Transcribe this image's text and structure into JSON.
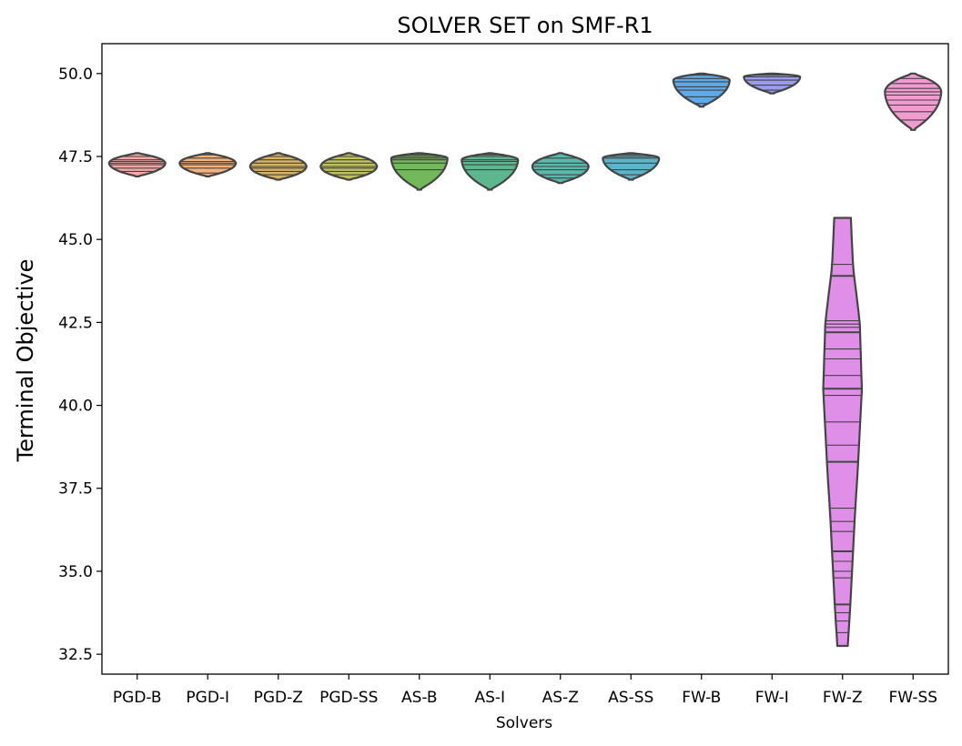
{
  "chart_data": {
    "type": "violin",
    "title": "SOLVER SET on SMF-R1",
    "xlabel": "Solvers",
    "ylabel": "Terminal Objective",
    "ylim": [
      31.9,
      50.9
    ],
    "yticks": [
      "32.5",
      "35.0",
      "37.5",
      "40.0",
      "42.5",
      "45.0",
      "47.5",
      "50.0"
    ],
    "grid": false,
    "inner": "stick",
    "series": [
      {
        "name": "PGD-B",
        "color": "#f4a7a3",
        "min": 46.9,
        "max": 47.6,
        "mode": 47.3,
        "width": 0.4,
        "sticks": [
          47.05,
          47.15,
          47.25,
          47.3,
          47.35,
          47.4,
          47.5
        ]
      },
      {
        "name": "PGD-I",
        "color": "#f5b17a",
        "min": 46.9,
        "max": 47.6,
        "mode": 47.3,
        "width": 0.4,
        "sticks": [
          47.0,
          47.15,
          47.25,
          47.3,
          47.35,
          47.45,
          47.55
        ]
      },
      {
        "name": "PGD-Z",
        "color": "#d6b25f",
        "min": 46.8,
        "max": 47.6,
        "mode": 47.2,
        "width": 0.4,
        "sticks": [
          46.95,
          47.05,
          47.15,
          47.2,
          47.3,
          47.4,
          47.5
        ]
      },
      {
        "name": "PGD-SS",
        "color": "#bfc25a",
        "min": 46.8,
        "max": 47.6,
        "mode": 47.2,
        "width": 0.4,
        "sticks": [
          46.95,
          47.05,
          47.15,
          47.2,
          47.3,
          47.4,
          47.5
        ]
      },
      {
        "name": "AS-B",
        "color": "#73b85a",
        "min": 46.5,
        "max": 47.6,
        "mode": 47.45,
        "width": 0.4,
        "sticks": [
          47.1,
          47.3,
          47.4,
          47.45,
          47.5,
          47.55
        ]
      },
      {
        "name": "AS-I",
        "color": "#5cb78f",
        "min": 46.5,
        "max": 47.6,
        "mode": 47.4,
        "width": 0.4,
        "sticks": [
          47.1,
          47.25,
          47.35,
          47.4,
          47.5,
          47.55
        ]
      },
      {
        "name": "AS-Z",
        "color": "#5ab8ad",
        "min": 46.7,
        "max": 47.6,
        "mode": 47.2,
        "width": 0.4,
        "sticks": [
          46.85,
          46.95,
          47.1,
          47.2,
          47.3,
          47.45
        ]
      },
      {
        "name": "AS-SS",
        "color": "#5ab5c7",
        "min": 46.8,
        "max": 47.6,
        "mode": 47.45,
        "width": 0.4,
        "sticks": [
          46.95,
          47.1,
          47.3,
          47.45,
          47.5,
          47.55
        ]
      },
      {
        "name": "FW-B",
        "color": "#5ea9e8",
        "min": 49.0,
        "max": 50.0,
        "mode": 49.8,
        "width": 0.4,
        "sticks": [
          49.1,
          49.3,
          49.5,
          49.6,
          49.75,
          49.85,
          49.95
        ]
      },
      {
        "name": "FW-I",
        "color": "#9a9cee",
        "min": 49.4,
        "max": 50.0,
        "mode": 49.9,
        "width": 0.4,
        "sticks": [
          49.5,
          49.65,
          49.8,
          49.9,
          49.95
        ]
      },
      {
        "name": "FW-Z",
        "color": "#e08fe8",
        "min": 32.75,
        "max": 45.65,
        "mode": 40.5,
        "width": 0.37,
        "profile": [
          [
            32.75,
            0.2
          ],
          [
            34.0,
            0.3
          ],
          [
            36.5,
            0.46
          ],
          [
            38.3,
            0.6
          ],
          [
            40.5,
            0.74
          ],
          [
            42.5,
            0.66
          ],
          [
            44.2,
            0.4
          ],
          [
            45.65,
            0.32
          ]
        ],
        "sticks": [
          33.15,
          33.5,
          33.75,
          34.0,
          34.8,
          35.0,
          35.3,
          35.6,
          36.2,
          36.5,
          36.9,
          38.3,
          38.8,
          39.5,
          40.3,
          40.5,
          40.9,
          41.4,
          41.7,
          42.2,
          42.35,
          42.45,
          42.55,
          43.9,
          44.25
        ]
      },
      {
        "name": "FW-SS",
        "color": "#f19bd0",
        "min": 48.3,
        "max": 50.0,
        "mode": 49.45,
        "width": 0.4,
        "sticks": [
          48.6,
          48.85,
          49.05,
          49.2,
          49.35,
          49.45,
          49.55,
          49.7,
          49.85
        ]
      }
    ]
  }
}
